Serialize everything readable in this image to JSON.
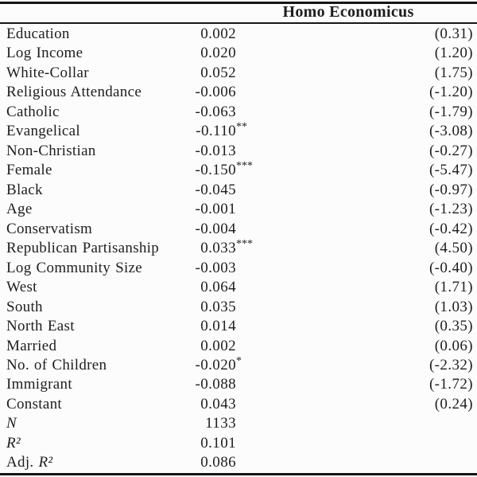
{
  "table": {
    "column_header": "Homo Economicus",
    "rows": [
      {
        "label": "Education",
        "label_em": "",
        "coef": "0.002",
        "stars": "",
        "tstat": "(0.31)"
      },
      {
        "label": "Log Income",
        "label_em": "",
        "coef": "0.020",
        "stars": "",
        "tstat": "(1.20)"
      },
      {
        "label": "White-Collar",
        "label_em": "",
        "coef": "0.052",
        "stars": "",
        "tstat": "(1.75)"
      },
      {
        "label": "Religious Attendance",
        "label_em": "",
        "coef": "-0.006",
        "stars": "",
        "tstat": "(-1.20)"
      },
      {
        "label": "Catholic",
        "label_em": "",
        "coef": "-0.063",
        "stars": "",
        "tstat": "(-1.79)"
      },
      {
        "label": "Evangelical",
        "label_em": "",
        "coef": "-0.110",
        "stars": "**",
        "tstat": "(-3.08)"
      },
      {
        "label": "Non-Christian",
        "label_em": "",
        "coef": "-0.013",
        "stars": "",
        "tstat": "(-0.27)"
      },
      {
        "label": "Female",
        "label_em": "",
        "coef": "-0.150",
        "stars": "***",
        "tstat": "(-5.47)"
      },
      {
        "label": "Black",
        "label_em": "",
        "coef": "-0.045",
        "stars": "",
        "tstat": "(-0.97)"
      },
      {
        "label": "Age",
        "label_em": "",
        "coef": "-0.001",
        "stars": "",
        "tstat": "(-1.23)"
      },
      {
        "label": "Conservatism",
        "label_em": "",
        "coef": "-0.004",
        "stars": "",
        "tstat": "(-0.42)"
      },
      {
        "label": "Republican Partisanship",
        "label_em": "",
        "coef": "0.033",
        "stars": "***",
        "tstat": "(4.50)"
      },
      {
        "label": "Log Community Size",
        "label_em": "",
        "coef": "-0.003",
        "stars": "",
        "tstat": "(-0.40)"
      },
      {
        "label": "West",
        "label_em": "",
        "coef": "0.064",
        "stars": "",
        "tstat": "(1.71)"
      },
      {
        "label": "South",
        "label_em": "",
        "coef": "0.035",
        "stars": "",
        "tstat": "(1.03)"
      },
      {
        "label": "North East",
        "label_em": "",
        "coef": "0.014",
        "stars": "",
        "tstat": "(0.35)"
      },
      {
        "label": "Married",
        "label_em": "",
        "coef": "0.002",
        "stars": "",
        "tstat": "(0.06)"
      },
      {
        "label": "No. of Children",
        "label_em": "",
        "coef": "-0.020",
        "stars": "*",
        "tstat": "(-2.32)"
      },
      {
        "label": "Immigrant",
        "label_em": "",
        "coef": "-0.088",
        "stars": "",
        "tstat": "(-1.72)"
      },
      {
        "label": "Constant",
        "label_em": "",
        "coef": "0.043",
        "stars": "",
        "tstat": "(0.24)"
      },
      {
        "label": "",
        "label_em": "N",
        "coef": "1133",
        "stars": "",
        "tstat": ""
      },
      {
        "label": "",
        "label_em": "R²",
        "coef": "0.101",
        "stars": "",
        "tstat": ""
      },
      {
        "label": "Adj. ",
        "label_em": "R²",
        "coef": "0.086",
        "stars": "",
        "tstat": ""
      }
    ]
  },
  "colors": {
    "background": "#fcfcfc",
    "text": "#1e1e1e",
    "rule": "#161616"
  }
}
